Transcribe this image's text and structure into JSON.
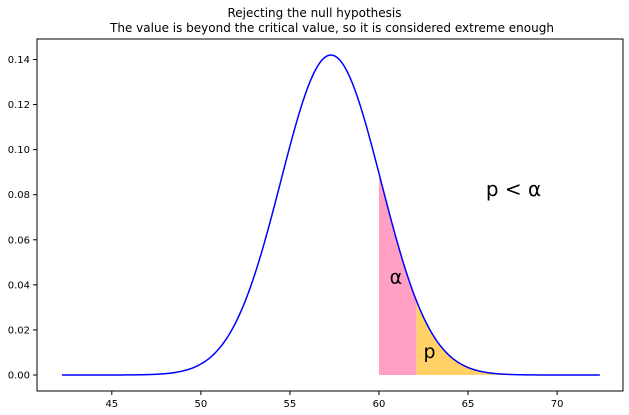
{
  "chart_data": {
    "type": "area",
    "title": "Rejecting the null hypothesis",
    "subtitle": "The value is beyond the critical value, so it is considered extreme enough",
    "xlabel": "",
    "ylabel": "",
    "xlim": [
      40.8,
      73.7
    ],
    "ylim": [
      -0.0071,
      0.1491
    ],
    "x_ticks": [
      45,
      50,
      55,
      60,
      65,
      70
    ],
    "y_ticks": [
      0.0,
      0.02,
      0.04,
      0.06,
      0.08,
      0.1,
      0.12,
      0.14
    ],
    "grid": false,
    "legend": "none",
    "series": [
      {
        "distribution": "normal",
        "mean": 57.3,
        "sd": 2.81,
        "x_range": [
          42.2,
          72.4
        ],
        "color": "#0000ff"
      }
    ],
    "shaded_regions": [
      {
        "label": "α",
        "x_from": 60.0,
        "x_to": 62.1,
        "color": "#ffa0c4"
      },
      {
        "label": "p",
        "x_from": 62.1,
        "x_to": 72.4,
        "color": "#ffd166"
      }
    ],
    "annotations": [
      {
        "text": "p < α",
        "x": 66.0,
        "y": 0.0795,
        "style": "big"
      },
      {
        "text": "α",
        "x": 60.6,
        "y": 0.0405,
        "style": "mid"
      },
      {
        "text": "p",
        "x": 62.5,
        "y": 0.0075,
        "style": "mid"
      }
    ]
  }
}
